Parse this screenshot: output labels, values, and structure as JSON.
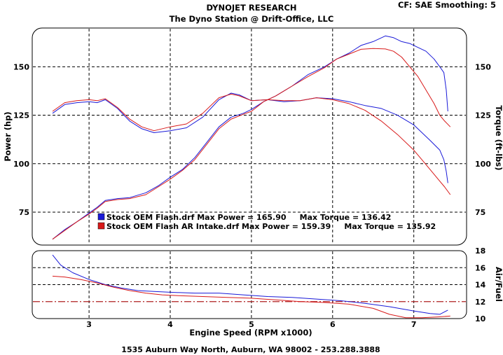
{
  "header": {
    "title": "DYNOJET RESEARCH",
    "subtitle": "The Dyno Station @ Drift-Office, LLC",
    "settings": "CF: SAE  Smoothing: 5"
  },
  "footer": {
    "address": "1535 Auburn Way North, Auburn, WA 98002 - 253.288.3888"
  },
  "colors": {
    "series_blue": "#1a1ad8",
    "series_red": "#d81a1a",
    "afr_target_line": "#b02020",
    "grid": "#000000",
    "frame": "#000000",
    "background": "#ffffff"
  },
  "chart_data": [
    {
      "type": "line",
      "xlabel": "Engine Speed (RPM x1000)",
      "ylabel": "Power (hp)",
      "ylabel_right": "Torque (ft-lbs)",
      "xlim": [
        2.3,
        7.65
      ],
      "ylim": [
        58,
        170
      ],
      "ylim_right": [
        58,
        170
      ],
      "yticks": [
        75,
        100,
        125,
        150
      ],
      "yticks_right": [
        75,
        100,
        125,
        150
      ],
      "grid": true,
      "legend": {
        "placement": "bottom-center",
        "entries": [
          {
            "color": "#1a1ad8",
            "text": "Stock OEM Flash.drf Max Power = 165.90     Max Torque = 136.42"
          },
          {
            "color": "#d81a1a",
            "text": "Stock OEM Flash AR Intake.drf Max Power = 159.39     Max Torque = 135.92"
          }
        ]
      },
      "series": [
        {
          "name": "Stock OEM Flash.drf",
          "quantity": "power",
          "color": "#1a1ad8",
          "x": [
            2.55,
            2.7,
            2.85,
            3.0,
            3.1,
            3.2,
            3.35,
            3.5,
            3.7,
            3.85,
            4.0,
            4.15,
            4.3,
            4.45,
            4.6,
            4.75,
            4.9,
            5.0,
            5.15,
            5.3,
            5.5,
            5.7,
            5.9,
            6.05,
            6.2,
            6.35,
            6.5,
            6.65,
            6.75,
            6.85,
            6.95,
            7.05,
            7.15,
            7.25,
            7.32,
            7.37,
            7.4,
            7.42
          ],
          "y": [
            61,
            66,
            70,
            74.5,
            77.5,
            81,
            82,
            82.5,
            85,
            88.5,
            93,
            97,
            103,
            111,
            119,
            124,
            126,
            128,
            132,
            135,
            140,
            146,
            150,
            154,
            157,
            161,
            163,
            165.9,
            165,
            163,
            162,
            160,
            158,
            154,
            150,
            147,
            138,
            127
          ]
        },
        {
          "name": "Stock OEM Flash AR Intake.drf",
          "quantity": "power",
          "color": "#d81a1a",
          "x": [
            2.55,
            2.7,
            2.85,
            3.0,
            3.1,
            3.2,
            3.35,
            3.5,
            3.7,
            3.85,
            4.0,
            4.15,
            4.3,
            4.45,
            4.6,
            4.75,
            4.9,
            5.0,
            5.15,
            5.3,
            5.5,
            5.7,
            5.9,
            6.05,
            6.2,
            6.35,
            6.5,
            6.65,
            6.75,
            6.85,
            6.95,
            7.05,
            7.15,
            7.25,
            7.32,
            7.38,
            7.45
          ],
          "y": [
            61,
            65.5,
            70,
            74,
            77,
            80.5,
            81.5,
            82,
            84,
            88,
            92,
            96.5,
            102,
            110,
            118,
            123,
            125.5,
            127,
            132,
            135,
            140,
            145,
            149.5,
            154,
            156.5,
            159,
            159.4,
            159.2,
            158,
            155,
            150,
            145,
            138,
            131,
            125,
            122,
            119
          ]
        },
        {
          "name": "Stock OEM Flash.drf",
          "quantity": "torque",
          "color": "#1a1ad8",
          "x": [
            2.55,
            2.7,
            2.85,
            3.0,
            3.1,
            3.2,
            3.35,
            3.5,
            3.65,
            3.8,
            4.0,
            4.2,
            4.4,
            4.6,
            4.75,
            4.85,
            5.0,
            5.2,
            5.4,
            5.6,
            5.8,
            6.0,
            6.2,
            6.4,
            6.6,
            6.8,
            7.0,
            7.2,
            7.32,
            7.37,
            7.4,
            7.42
          ],
          "y": [
            126,
            130.5,
            131.5,
            132,
            131.5,
            133,
            128.5,
            122,
            118,
            116,
            117,
            118.5,
            124,
            133,
            136.4,
            135.5,
            132.5,
            133,
            132,
            132.5,
            134,
            133.5,
            132,
            130,
            128.5,
            125,
            120,
            112,
            107,
            102,
            96,
            90
          ]
        },
        {
          "name": "Stock OEM Flash AR Intake.drf",
          "quantity": "torque",
          "color": "#d81a1a",
          "x": [
            2.55,
            2.7,
            2.85,
            3.0,
            3.1,
            3.2,
            3.35,
            3.5,
            3.65,
            3.8,
            4.0,
            4.2,
            4.4,
            4.6,
            4.75,
            4.85,
            5.0,
            5.2,
            5.4,
            5.6,
            5.8,
            6.0,
            6.2,
            6.4,
            6.6,
            6.8,
            7.0,
            7.1,
            7.2,
            7.3,
            7.38,
            7.45
          ],
          "y": [
            127,
            131.5,
            132.5,
            133,
            132.5,
            133.5,
            129,
            123,
            119,
            117,
            119,
            120.5,
            126,
            134,
            135.9,
            135,
            132.5,
            133,
            132.5,
            132.5,
            134,
            133,
            131,
            127.5,
            122,
            115,
            107,
            102,
            97,
            92,
            88,
            84
          ]
        }
      ]
    },
    {
      "type": "line",
      "ylabel_right": "Air/Fuel",
      "ylim": [
        10,
        18
      ],
      "yticks_right": [
        10,
        12,
        14,
        16,
        18
      ],
      "xticks": [
        3,
        4,
        5,
        6,
        7
      ],
      "xlim": [
        2.3,
        7.65
      ],
      "grid": true,
      "reference_line": {
        "y": 12,
        "color": "#b02020",
        "style": "dash-dot"
      },
      "series": [
        {
          "name": "Stock OEM Flash.drf",
          "color": "#1a1ad8",
          "x": [
            2.55,
            2.65,
            2.8,
            3.0,
            3.2,
            3.4,
            3.6,
            3.8,
            4.0,
            4.3,
            4.6,
            4.9,
            5.2,
            5.5,
            5.8,
            6.1,
            6.4,
            6.7,
            7.0,
            7.2,
            7.32,
            7.38,
            7.42
          ],
          "y": [
            17.5,
            16.3,
            15.4,
            14.6,
            14.0,
            13.6,
            13.3,
            13.2,
            13.1,
            13.0,
            13.0,
            12.8,
            12.6,
            12.5,
            12.3,
            12.1,
            11.8,
            11.4,
            10.9,
            10.6,
            10.5,
            10.8,
            11.0
          ]
        },
        {
          "name": "Stock OEM Flash AR Intake.drf",
          "color": "#d81a1a",
          "x": [
            2.55,
            2.7,
            2.9,
            3.1,
            3.3,
            3.5,
            3.7,
            3.9,
            4.1,
            4.4,
            4.7,
            5.0,
            5.3,
            5.6,
            5.9,
            6.2,
            6.5,
            6.7,
            6.9,
            7.1,
            7.3,
            7.45
          ],
          "y": [
            15.0,
            14.9,
            14.6,
            14.2,
            13.7,
            13.3,
            13.0,
            12.8,
            12.7,
            12.6,
            12.5,
            12.4,
            12.2,
            12.0,
            11.9,
            11.7,
            11.2,
            10.5,
            10.1,
            10.1,
            10.2,
            10.3
          ]
        }
      ]
    }
  ]
}
